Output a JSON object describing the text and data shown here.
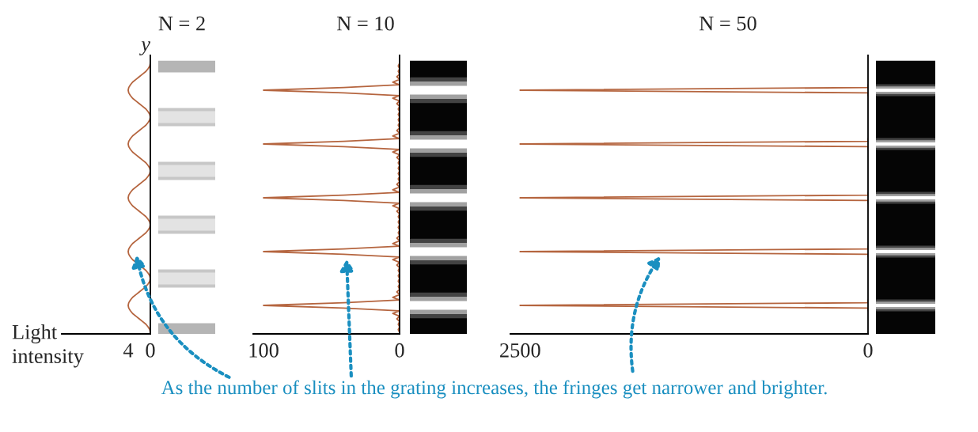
{
  "chart_data": [
    {
      "type": "line",
      "orientation": "horizontal",
      "title": "N = 2",
      "ylabel": "y",
      "xlabel": "Light intensity",
      "xlim": [
        16,
        0
      ],
      "xticks": [
        4,
        0
      ],
      "tick_labels": "x",
      "categories": [
        null,
        null,
        null,
        null,
        null,
        null,
        null,
        null,
        null,
        null,
        null,
        null,
        null,
        null,
        null,
        null,
        null,
        null,
        null,
        null,
        null,
        null,
        null,
        null,
        null,
        null,
        null,
        null,
        null,
        null,
        null,
        null,
        null,
        null,
        null,
        null,
        null,
        null,
        null,
        null,
        null,
        null,
        null,
        null,
        null,
        null,
        null,
        null,
        null,
        null,
        null,
        null,
        null,
        null,
        null,
        null,
        null,
        null,
        null,
        null,
        null,
        null,
        null,
        null,
        null,
        null,
        null,
        null,
        null,
        null,
        null,
        null,
        null,
        null,
        null,
        null,
        null,
        null,
        null,
        null,
        null,
        null,
        null,
        null,
        null,
        null,
        null,
        null,
        null,
        null,
        null,
        null,
        null,
        null,
        null,
        null,
        null,
        null,
        null,
        null,
        null
      ],
      "series": [
        {
          "color": "#b5653f",
          "values": [
            0,
            0.1,
            0.4,
            0.8,
            1.4,
            2,
            2.6,
            3.2,
            3.6,
            3.9,
            4,
            3.9,
            3.6,
            3.2,
            2.6,
            2,
            1.4,
            0.8,
            0.4,
            0.1,
            0,
            0.1,
            0.4,
            0.8,
            1.4,
            2,
            2.6,
            3.2,
            3.6,
            3.9,
            4,
            3.9,
            3.6,
            3.2,
            2.6,
            2,
            1.4,
            0.8,
            0.4,
            0.1,
            0,
            0.1,
            0.4,
            0.8,
            1.4,
            2,
            2.6,
            3.2,
            3.6,
            3.9,
            4,
            3.9,
            3.6,
            3.2,
            2.6,
            2,
            1.4,
            0.8,
            0.4,
            0.1,
            0,
            0.1,
            0.4,
            0.8,
            1.4,
            2,
            2.6,
            3.2,
            3.6,
            3.9,
            4,
            3.9,
            3.6,
            3.2,
            2.6,
            2,
            1.4,
            0.8,
            0.4,
            0.1,
            0,
            0.1,
            0.4,
            0.8,
            1.4,
            2,
            2.6,
            3.2,
            3.6,
            3.9,
            4,
            3.9,
            3.6,
            3.2,
            2.6,
            2,
            1.4,
            0.8,
            0.4,
            0.1,
            0
          ]
        }
      ],
      "annotations": [
        "As the number of slits in the grating increases, the fringes get narrower and brighter."
      ]
    },
    {
      "type": "line",
      "orientation": "horizontal",
      "title": "N = 10",
      "xlim": [
        107.6,
        0
      ],
      "xticks": [
        100,
        0
      ],
      "tick_labels": "x",
      "categories": [
        null,
        null,
        null,
        null,
        null,
        null,
        null,
        null,
        null,
        null,
        null,
        null,
        null,
        null,
        null,
        null,
        null,
        null,
        null,
        null,
        null,
        null,
        null,
        null,
        null,
        null,
        null,
        null,
        null,
        null,
        null,
        null,
        null,
        null,
        null,
        null,
        null,
        null,
        null,
        null,
        null,
        null,
        null,
        null,
        null,
        null,
        null,
        null,
        null,
        null,
        null,
        null,
        null,
        null,
        null,
        null,
        null,
        null,
        null,
        null,
        null,
        null,
        null,
        null,
        null,
        null,
        null,
        null,
        null,
        null,
        null,
        null,
        null,
        null,
        null,
        null,
        null,
        null,
        null,
        null,
        null,
        null,
        null,
        null,
        null,
        null,
        null,
        null,
        null,
        null,
        null,
        null,
        null,
        null,
        null,
        null,
        null,
        null,
        null,
        null,
        null
      ],
      "series": [
        {
          "color": "#b5653f",
          "values": [
            0,
            1,
            0,
            1,
            0,
            2,
            0,
            5,
            0,
            41,
            100,
            41,
            0,
            5,
            0,
            2,
            0,
            1,
            0,
            1,
            0,
            1,
            0,
            1,
            0,
            2,
            0,
            5,
            0,
            41,
            100,
            41,
            0,
            5,
            0,
            2,
            0,
            1,
            0,
            1,
            0,
            1,
            0,
            1,
            0,
            2,
            0,
            5,
            0,
            41,
            100,
            41,
            0,
            5,
            0,
            2,
            0,
            1,
            0,
            1,
            0,
            1,
            0,
            1,
            0,
            2,
            0,
            5,
            0,
            41,
            100,
            41,
            0,
            5,
            0,
            2,
            0,
            1,
            0,
            1,
            0,
            1,
            0,
            1,
            0,
            2,
            0,
            5,
            0,
            41,
            100,
            41,
            0,
            5,
            0,
            2,
            0,
            1,
            0,
            1,
            0
          ]
        }
      ]
    },
    {
      "type": "line",
      "orientation": "horizontal",
      "title": "N = 50",
      "xlim": [
        2570,
        0
      ],
      "xticks": [
        2500,
        0
      ],
      "tick_labels": "x",
      "categories": [
        null,
        null,
        null,
        null,
        null,
        null,
        null,
        null,
        null,
        null,
        null,
        null,
        null,
        null,
        null,
        null,
        null,
        null,
        null,
        null,
        null,
        null,
        null,
        null,
        null,
        null,
        null,
        null,
        null,
        null,
        null,
        null,
        null,
        null,
        null,
        null,
        null,
        null,
        null,
        null,
        null,
        null,
        null,
        null,
        null,
        null,
        null,
        null,
        null,
        null,
        null,
        null,
        null,
        null,
        null,
        null,
        null,
        null,
        null,
        null,
        null,
        null,
        null,
        null,
        null,
        null,
        null,
        null,
        null,
        null,
        null,
        null,
        null,
        null,
        null,
        null,
        null,
        null,
        null,
        null,
        null,
        null,
        null,
        null,
        null,
        null,
        null,
        null,
        null,
        null,
        null,
        null,
        null,
        null,
        null,
        null,
        null,
        null,
        null,
        null,
        null
      ],
      "series": [
        {
          "color": "#b5653f",
          "values": [
            null,
            null,
            null,
            null,
            null,
            null,
            null,
            null,
            0,
            0,
            2500,
            0,
            0,
            null,
            null,
            null,
            null,
            null,
            null,
            null,
            null,
            null,
            null,
            null,
            null,
            null,
            null,
            null,
            0,
            0,
            2500,
            0,
            0,
            null,
            null,
            null,
            null,
            null,
            null,
            null,
            null,
            null,
            null,
            null,
            null,
            null,
            null,
            null,
            0,
            0,
            2500,
            0,
            0,
            null,
            null,
            null,
            null,
            null,
            null,
            null,
            null,
            null,
            null,
            null,
            null,
            null,
            null,
            null,
            0,
            0,
            2500,
            0,
            0,
            null,
            null,
            null,
            null,
            null,
            null,
            null,
            null,
            null,
            null,
            null,
            null,
            null,
            null,
            null,
            0,
            0,
            2500,
            0,
            0,
            null,
            null,
            null,
            null,
            null,
            null,
            null,
            null
          ]
        }
      ]
    }
  ]
}
